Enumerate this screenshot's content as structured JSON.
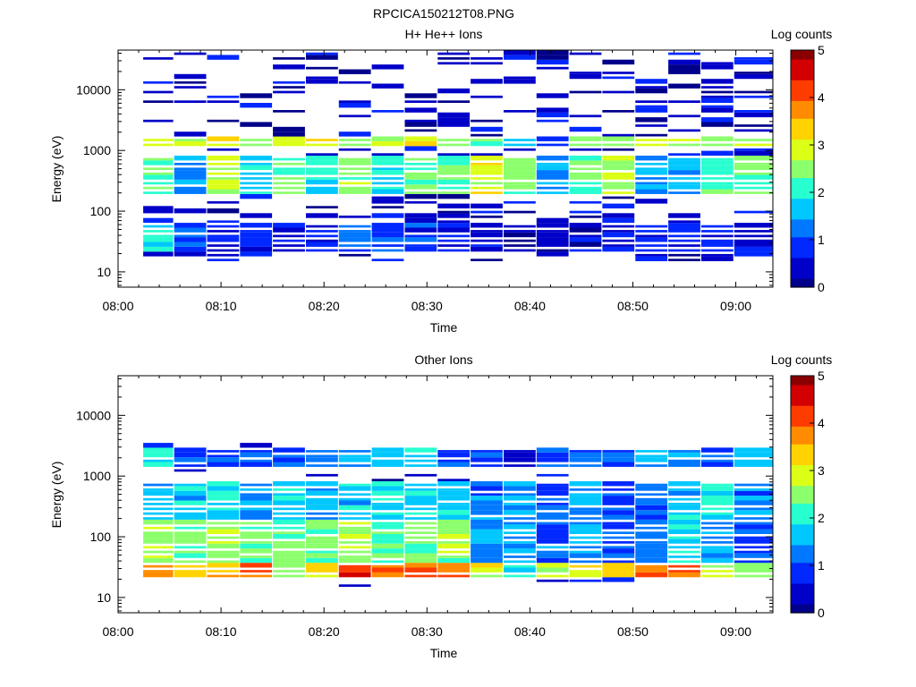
{
  "file_title": "RPCICA150212T08.PNG",
  "palette": [
    "#00008a",
    "#0000c8",
    "#0028ff",
    "#0078ff",
    "#00c8ff",
    "#28ffd0",
    "#8cff6c",
    "#dcff18",
    "#ffd200",
    "#ff8c00",
    "#ff3c00",
    "#d20000",
    "#8a0000"
  ],
  "chart_data": [
    {
      "type": "heatmap",
      "title": "H+ He++ Ions",
      "xlabel": "Time",
      "ylabel": "Energy (eV)",
      "y_scale": "log",
      "ylim": [
        5.6,
        45000
      ],
      "xlim": [
        "08:00",
        "09:03.6"
      ],
      "x_ticks": [
        "08:00",
        "08:10",
        "08:20",
        "08:30",
        "08:40",
        "08:50",
        "09:00"
      ],
      "y_ticks": [
        "10",
        "100",
        "1000",
        "10000"
      ],
      "colorbar": {
        "label": "Log counts",
        "range": [
          0,
          5
        ],
        "ticks": [
          "0",
          "1",
          "2",
          "3",
          "4",
          "5"
        ]
      },
      "time_bins": [
        "08:02.4",
        "08:05.4",
        "08:08.6",
        "08:11.8",
        "08:15.0",
        "08:18.2",
        "08:21.4",
        "08:24.6",
        "08:27.8",
        "08:31.0",
        "08:34.2",
        "08:37.4",
        "08:40.6",
        "08:43.8",
        "08:47.0",
        "08:50.2",
        "08:53.4",
        "08:56.6",
        "08:59.8",
        "09:03.6"
      ],
      "energy_bands_eV": [
        {
          "range": [
            20,
            60
          ],
          "values": [
            1.8,
            1.0,
            0.6,
            0.9,
            0.7,
            0.8,
            1.1,
            0.9,
            0.8,
            0.8,
            0.5,
            0.4,
            0.4,
            0.4,
            0.6,
            0.7,
            0.8,
            0.6,
            0.4
          ]
        },
        {
          "range": [
            200,
            800
          ],
          "values": [
            2.2,
            1.5,
            2.8,
            1.8,
            2.3,
            1.9,
            2.5,
            1.9,
            2.2,
            2.3,
            2.9,
            2.4,
            1.5,
            2.3,
            2.8,
            1.4,
            1.5,
            2.1,
            2.4
          ]
        },
        {
          "range": [
            1100,
            1600
          ],
          "values": [
            3.0,
            2.7,
            3.0,
            2.4,
            2.8,
            3.1,
            2.7,
            2.8,
            3.1,
            2.6,
            2.1,
            1.6,
            0.8,
            2.7,
            2.6,
            2.8,
            2.8,
            2.3,
            2.5
          ]
        }
      ]
    },
    {
      "type": "heatmap",
      "title": "Other Ions",
      "xlabel": "Time",
      "ylabel": "Energy (eV)",
      "y_scale": "log",
      "ylim": [
        5.6,
        45000
      ],
      "xlim": [
        "08:00",
        "09:03.6"
      ],
      "x_ticks": [
        "08:00",
        "08:10",
        "08:20",
        "08:30",
        "08:40",
        "08:50",
        "09:00"
      ],
      "y_ticks": [
        "10",
        "100",
        "1000",
        "10000"
      ],
      "colorbar": {
        "label": "Log counts",
        "range": [
          0,
          5
        ],
        "ticks": [
          "0",
          "1",
          "2",
          "3",
          "4",
          "5"
        ]
      },
      "time_bins": [
        "08:02.4",
        "08:05.4",
        "08:08.6",
        "08:11.8",
        "08:15.0",
        "08:18.2",
        "08:21.4",
        "08:24.6",
        "08:27.8",
        "08:31.0",
        "08:34.2",
        "08:37.4",
        "08:40.6",
        "08:43.8",
        "08:47.0",
        "08:50.2",
        "08:53.4",
        "08:56.6",
        "08:59.8",
        "09:03.6"
      ],
      "energy_bands_eV": [
        {
          "range": [
            22,
            40
          ],
          "values": [
            3.9,
            3.4,
            3.4,
            3.9,
            2.6,
            3.1,
            4.1,
            4.1,
            3.9,
            3.9,
            3.0,
            1.9,
            2.6,
            3.1,
            3.4,
            3.8,
            3.7,
            2.6,
            2.3
          ]
        },
        {
          "range": [
            40,
            200
          ],
          "values": [
            2.7,
            2.3,
            2.6,
            2.4,
            2.5,
            2.4,
            2.6,
            2.4,
            2.5,
            2.5,
            1.4,
            1.5,
            1.2,
            1.4,
            1.1,
            1.3,
            1.7,
            1.4,
            1.0
          ]
        },
        {
          "range": [
            200,
            800
          ],
          "values": [
            1.5,
            1.7,
            2.0,
            1.4,
            1.8,
            1.5,
            1.7,
            1.9,
            1.9,
            1.8,
            1.2,
            1.4,
            1.1,
            1.5,
            1.0,
            1.2,
            1.6,
            2.0,
            1.3
          ]
        },
        {
          "range": [
            1300,
            3000
          ],
          "values": [
            1.8,
            1.0,
            1.0,
            1.0,
            1.0,
            1.2,
            1.4,
            1.6,
            1.8,
            1.0,
            1.0,
            0.4,
            1.0,
            1.0,
            1.0,
            1.5,
            1.5,
            1.0,
            1.5
          ]
        }
      ]
    }
  ]
}
